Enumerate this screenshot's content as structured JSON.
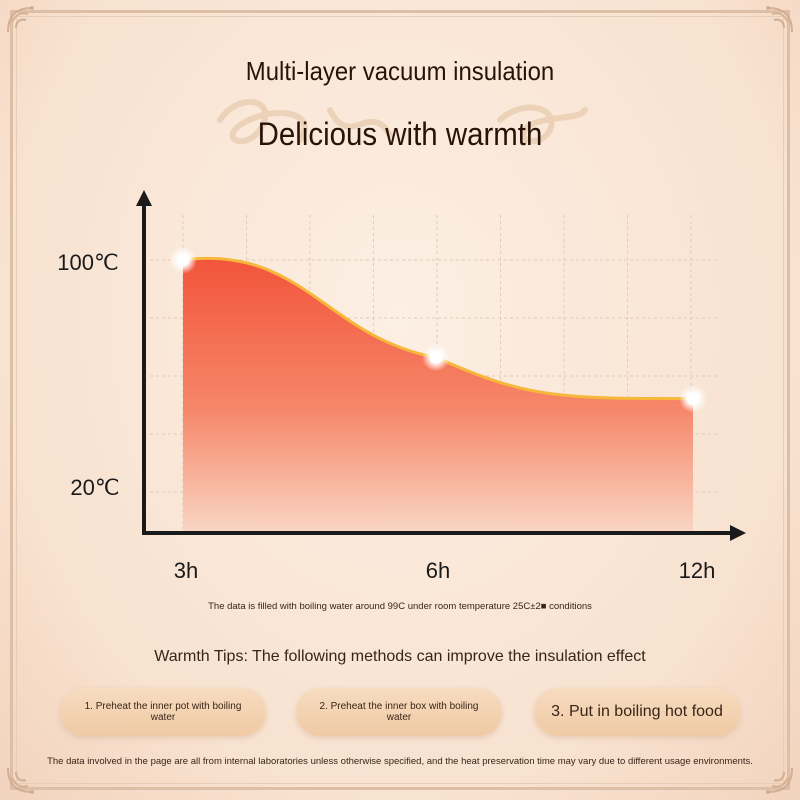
{
  "header": {
    "subtitle": "Multi-layer vacuum insulation",
    "title": "Delicious with warmth"
  },
  "chart_data": {
    "type": "area",
    "x": [
      "3h",
      "6h",
      "12h"
    ],
    "values": [
      100,
      67,
      53
    ],
    "ylabels": [
      "100℃",
      "20℃"
    ],
    "note": "The data is filled with boiling water around 99C under room temperature 25C±2■ conditions",
    "colors": {
      "fill_top": "#f25a3c",
      "fill_bottom": "#f8d0bc",
      "line": "#f6b73a"
    }
  },
  "tips": {
    "title": "Warmth Tips: The following methods can improve the insulation effect",
    "items": [
      "1. Preheat the inner pot with boiling water",
      "2. Preheat the inner box with boiling water",
      "3. Put in boiling hot food"
    ]
  },
  "footer": "The data involved in the page are all from internal laboratories unless otherwise specified, and the heat preservation time may vary due to different usage environments."
}
